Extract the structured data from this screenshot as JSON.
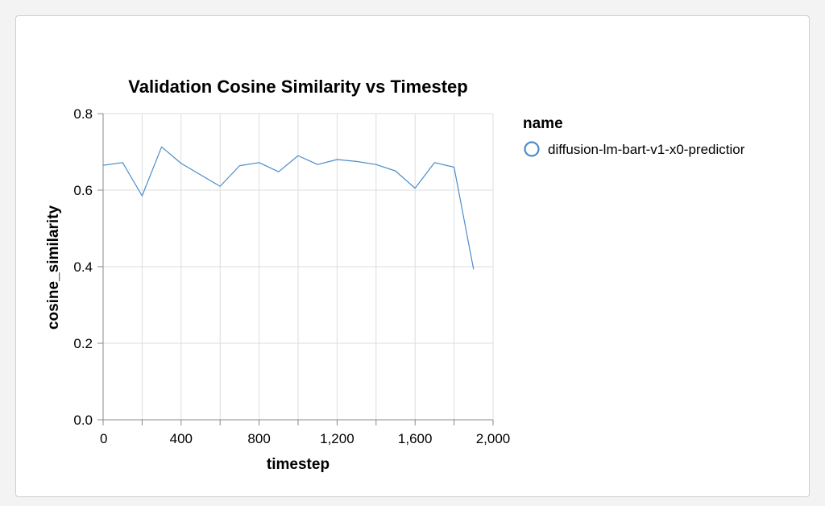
{
  "chart_data": {
    "type": "line",
    "title": "Validation Cosine Similarity vs Timestep",
    "xlabel": "timestep",
    "ylabel": "cosine_similarity",
    "xlim": [
      0,
      2000
    ],
    "ylim": [
      0,
      0.8
    ],
    "x_ticks": [
      0,
      400,
      800,
      1200,
      1600,
      2000
    ],
    "x_tick_labels": [
      "0",
      "400",
      "800",
      "1,200",
      "1,600",
      "2,000"
    ],
    "x_minor_ticks": [
      0,
      200,
      400,
      600,
      800,
      1000,
      1200,
      1400,
      1600,
      1800,
      2000
    ],
    "y_ticks": [
      0.0,
      0.2,
      0.4,
      0.6,
      0.8
    ],
    "y_tick_labels": [
      "0.0",
      "0.2",
      "0.4",
      "0.6",
      "0.8"
    ],
    "grid": true,
    "legend": {
      "title": "name",
      "position": "right",
      "entries": [
        "diffusion-lm-bart-v1-x0-predictior"
      ]
    },
    "colors": {
      "series": "#4c8ccb",
      "grid": "#dddddd",
      "axis": "#888888"
    },
    "series": [
      {
        "name": "diffusion-lm-bart-v1-x0-predictior",
        "x": [
          0,
          100,
          200,
          300,
          400,
          500,
          600,
          700,
          800,
          900,
          1000,
          1100,
          1200,
          1300,
          1400,
          1500,
          1600,
          1700,
          1800,
          1900
        ],
        "y": [
          0.665,
          0.672,
          0.585,
          0.713,
          0.67,
          0.64,
          0.61,
          0.664,
          0.672,
          0.648,
          0.69,
          0.667,
          0.68,
          0.675,
          0.667,
          0.65,
          0.605,
          0.672,
          0.66,
          0.393
        ]
      }
    ]
  }
}
